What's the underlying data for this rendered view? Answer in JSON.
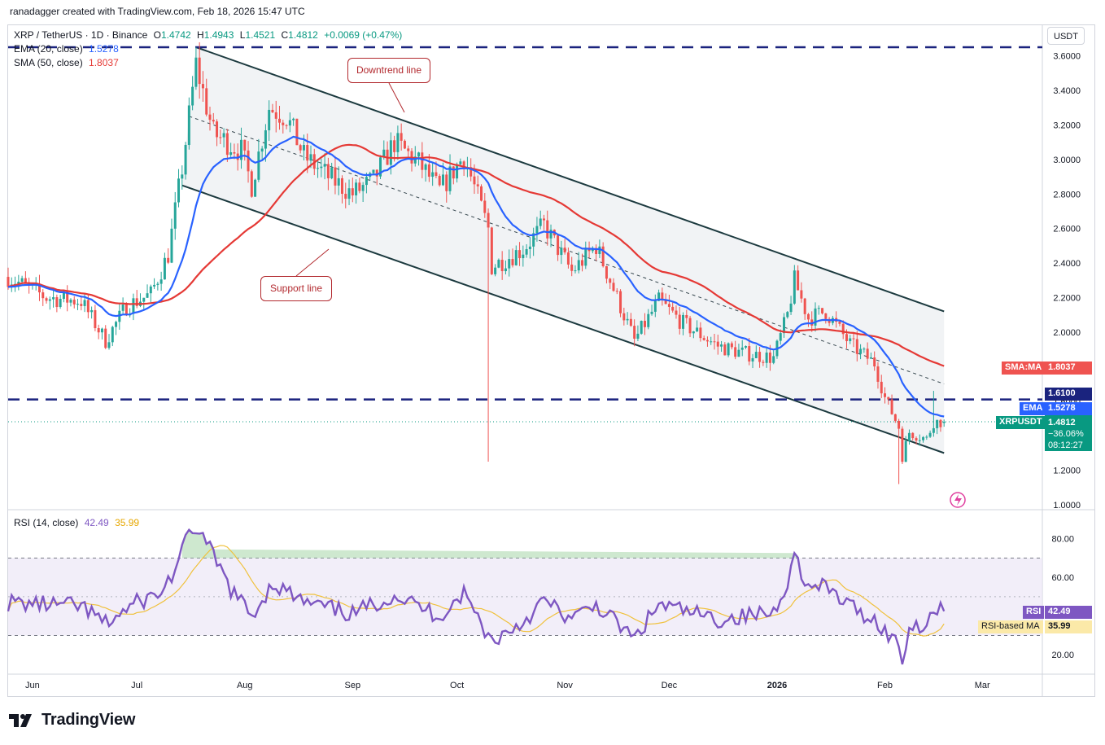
{
  "header": {
    "attribution": "ranadagger created with TradingView.com, Feb 18, 2026 15:47 UTC"
  },
  "legend": {
    "symbol_line": {
      "symbol": "XRP / TetherUS · 1D · Binance",
      "open_label": "O",
      "open": "1.4742",
      "high_label": "H",
      "high": "1.4943",
      "low_label": "L",
      "low": "1.4521",
      "close_label": "C",
      "close": "1.4812",
      "change": "+0.0069 (+0.47%)"
    },
    "ema": {
      "label": "EMA (20, close)",
      "value": "1.5278",
      "color": "#2962ff"
    },
    "sma": {
      "label": "SMA (50, close)",
      "value": "1.8037",
      "color": "#e53935"
    },
    "rsi": {
      "label": "RSI (14, close)",
      "value": "42.49",
      "ma_value": "35.99",
      "color": "#7e57c2",
      "ma_color": "#f0c13c"
    }
  },
  "axis": {
    "currency": "USDT",
    "price_ticks": [
      "3.6000",
      "3.4000",
      "3.2000",
      "3.0000",
      "2.8000",
      "2.6000",
      "2.4000",
      "2.2000",
      "2.0000",
      "1.8000",
      "1.6000",
      "1.4000",
      "1.2000",
      "1.0000"
    ],
    "rsi_ticks": [
      "80.00",
      "60.00",
      "20.00"
    ],
    "time_ticks": [
      "Jun",
      "Jul",
      "Aug",
      "Sep",
      "Oct",
      "Nov",
      "Dec",
      "2026",
      "Feb",
      "Mar"
    ]
  },
  "price_tags": {
    "sma_label": "SMA:MA",
    "sma_value": "1.8037",
    "level_value": "1.6100",
    "ema_label": "EMA",
    "ema_value": "1.5278",
    "symbol_label": "XRPUSDT",
    "last_price": "1.4812",
    "last_change": "−36.06%",
    "countdown": "08:12:27",
    "rsi_label": "RSI",
    "rsi_value": "42.49",
    "rsi_ma_label": "RSI-based MA",
    "rsi_ma_value": "35.99"
  },
  "annotations": {
    "downtrend": "Downtrend line",
    "support": "Support line"
  },
  "footer": {
    "brand": "TradingView"
  },
  "colors": {
    "up": "#26a69a",
    "down": "#ef5350",
    "channel": "#1c3a3f",
    "level": "#1a237e",
    "callout": "#b2292e"
  },
  "chart_data": {
    "type": "candlestick",
    "title": "XRP / TetherUS · 1D · Binance",
    "ylabel": "USDT",
    "ylim": [
      1.0,
      3.65
    ],
    "horizontal_levels": [
      3.65,
      1.61
    ],
    "channel": {
      "upper": [
        [
          "2025-07-18",
          3.65
        ],
        [
          "2026-02-18",
          2.12
        ]
      ],
      "lower": [
        [
          "2025-07-14",
          2.85
        ],
        [
          "2026-02-18",
          1.3
        ]
      ],
      "median": [
        [
          "2025-07-16",
          3.25
        ],
        [
          "2026-02-18",
          1.7
        ]
      ]
    },
    "price_anchors": [
      [
        "2025-05-25",
        2.32
      ],
      [
        "2025-06-05",
        2.2
      ],
      [
        "2025-06-15",
        2.18
      ],
      [
        "2025-06-22",
        1.95
      ],
      [
        "2025-06-28",
        2.15
      ],
      [
        "2025-07-05",
        2.22
      ],
      [
        "2025-07-10",
        2.45
      ],
      [
        "2025-07-14",
        2.95
      ],
      [
        "2025-07-18",
        3.55
      ],
      [
        "2025-07-23",
        3.15
      ],
      [
        "2025-07-31",
        3.05
      ],
      [
        "2025-08-03",
        2.85
      ],
      [
        "2025-08-08",
        3.3
      ],
      [
        "2025-08-13",
        3.25
      ],
      [
        "2025-08-18",
        3.02
      ],
      [
        "2025-08-25",
        2.9
      ],
      [
        "2025-09-01",
        2.8
      ],
      [
        "2025-09-07",
        2.88
      ],
      [
        "2025-09-13",
        3.1
      ],
      [
        "2025-09-20",
        2.98
      ],
      [
        "2025-09-26",
        2.82
      ],
      [
        "2025-10-03",
        3.02
      ],
      [
        "2025-10-10",
        2.6
      ],
      [
        "2025-10-11",
        2.38
      ],
      [
        "2025-10-20",
        2.48
      ],
      [
        "2025-10-26",
        2.62
      ],
      [
        "2025-11-03",
        2.35
      ],
      [
        "2025-11-10",
        2.5
      ],
      [
        "2025-11-16",
        2.2
      ],
      [
        "2025-11-21",
        1.95
      ],
      [
        "2025-11-28",
        2.18
      ],
      [
        "2025-12-05",
        2.05
      ],
      [
        "2025-12-15",
        1.92
      ],
      [
        "2025-12-22",
        1.88
      ],
      [
        "2025-12-31",
        1.85
      ],
      [
        "2026-01-04",
        2.1
      ],
      [
        "2026-01-06",
        2.3
      ],
      [
        "2026-01-10",
        2.08
      ],
      [
        "2026-01-15",
        2.12
      ],
      [
        "2026-01-22",
        1.93
      ],
      [
        "2026-01-29",
        1.82
      ],
      [
        "2026-02-01",
        1.62
      ],
      [
        "2026-02-05",
        1.45
      ],
      [
        "2026-02-06",
        1.28
      ],
      [
        "2026-02-08",
        1.42
      ],
      [
        "2026-02-13",
        1.38
      ],
      [
        "2026-02-15",
        1.48
      ],
      [
        "2026-02-18",
        1.48
      ]
    ],
    "ema20": {
      "name": "EMA (20, close)",
      "last": 1.5278
    },
    "sma50": {
      "name": "SMA (50, close)",
      "last": 1.8037
    },
    "last": {
      "open": 1.4742,
      "high": 1.4943,
      "low": 1.4521,
      "close": 1.4812
    },
    "rsi": {
      "name": "RSI (14, close)",
      "ylim": [
        10,
        92
      ],
      "bands": [
        30,
        50,
        70
      ],
      "anchors": [
        [
          "2025-05-25",
          47
        ],
        [
          "2025-06-05",
          46
        ],
        [
          "2025-06-15",
          45
        ],
        [
          "2025-06-22",
          36
        ],
        [
          "2025-07-01",
          47
        ],
        [
          "2025-07-08",
          52
        ],
        [
          "2025-07-12",
          64
        ],
        [
          "2025-07-16",
          82
        ],
        [
          "2025-07-18",
          86
        ],
        [
          "2025-07-22",
          74
        ],
        [
          "2025-07-28",
          54
        ],
        [
          "2025-08-03",
          40
        ],
        [
          "2025-08-09",
          57
        ],
        [
          "2025-08-18",
          47
        ],
        [
          "2025-09-01",
          41
        ],
        [
          "2025-09-13",
          51
        ],
        [
          "2025-09-26",
          40
        ],
        [
          "2025-10-03",
          52
        ],
        [
          "2025-10-11",
          27
        ],
        [
          "2025-10-20",
          37
        ],
        [
          "2025-10-26",
          48
        ],
        [
          "2025-11-03",
          38
        ],
        [
          "2025-11-10",
          46
        ],
        [
          "2025-11-21",
          28
        ],
        [
          "2025-11-28",
          46
        ],
        [
          "2025-12-15",
          38
        ],
        [
          "2025-12-31",
          42
        ],
        [
          "2026-01-05",
          63
        ],
        [
          "2026-01-06",
          73
        ],
        [
          "2026-01-10",
          54
        ],
        [
          "2026-01-15",
          55
        ],
        [
          "2026-01-22",
          45
        ],
        [
          "2026-01-29",
          38
        ],
        [
          "2026-02-05",
          25
        ],
        [
          "2026-02-06",
          17
        ],
        [
          "2026-02-08",
          34
        ],
        [
          "2026-02-13",
          37
        ],
        [
          "2026-02-15",
          43
        ],
        [
          "2026-02-18",
          42.49
        ]
      ],
      "last": 42.49,
      "ma_last": 35.99
    }
  }
}
